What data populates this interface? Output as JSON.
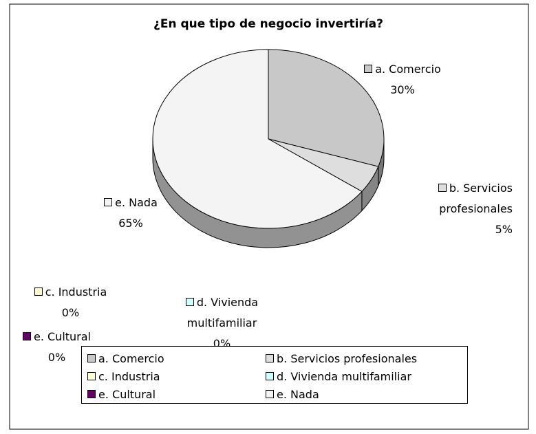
{
  "chart_data": {
    "type": "pie3d",
    "title": "¿En que tipo de negocio invertiría?",
    "categories": [
      "a. Comercio",
      "b. Servicios profesionales",
      "c. Industria",
      "d. Vivienda multifamiliar",
      "e. Cultural",
      "e. Nada"
    ],
    "values": [
      30,
      5,
      0,
      0,
      0,
      65
    ],
    "value_labels": [
      "30%",
      "5%",
      "0%",
      "0%",
      "0%",
      "65%"
    ],
    "colors": [
      "#c8c8c8",
      "#dedede",
      "#ffffcc",
      "#ccffff",
      "#660066",
      "#f4f4f4"
    ],
    "legend": "bottom"
  }
}
